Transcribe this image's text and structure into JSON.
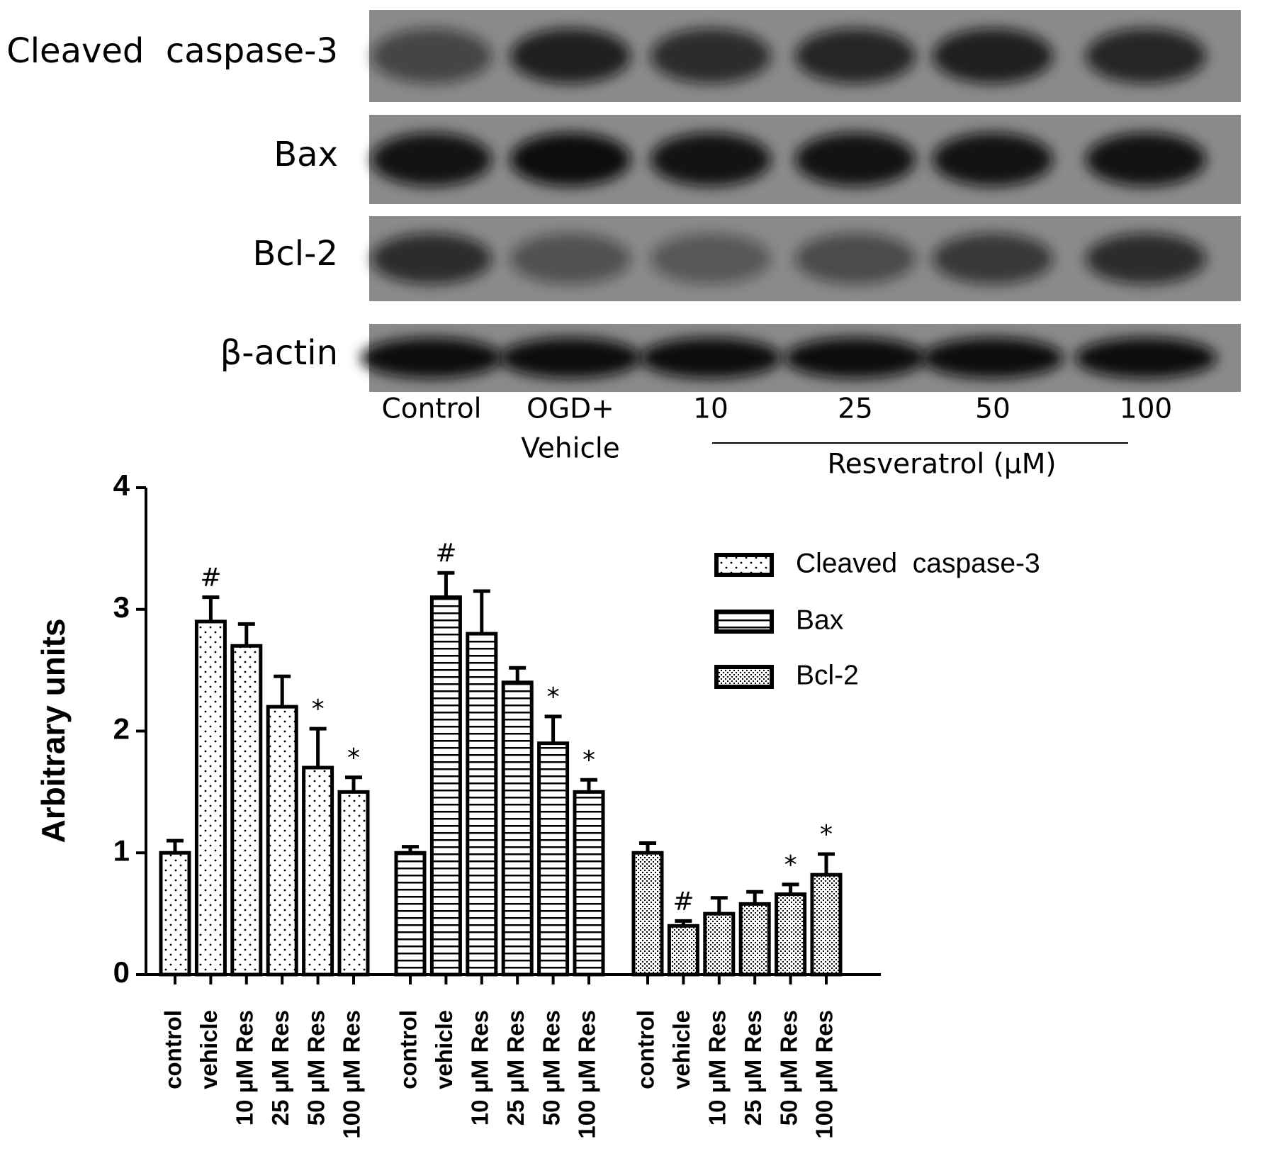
{
  "blot": {
    "rows": [
      "Cleaved  caspase-3",
      "Bax",
      "Bcl-2",
      "β-actin"
    ],
    "lanes": [
      "Control",
      [
        "OGD+",
        "Vehicle"
      ],
      "10",
      "25",
      "50",
      "100"
    ],
    "group_label": "Resveratrol (μM)"
  },
  "chart_data": {
    "type": "bar",
    "y_label": "Arbitrary units",
    "categories": [
      "control",
      "vehicle",
      "10 μM Res",
      "25 μM Res",
      "50 μM Res",
      "100 μM Res"
    ],
    "ylim": [
      0,
      4
    ],
    "yticks": [
      0,
      1,
      2,
      3,
      4
    ],
    "color": "#000000",
    "series": [
      {
        "name": "Cleaved  caspase-3",
        "pattern": "dots",
        "values": [
          1.0,
          2.9,
          2.7,
          2.2,
          1.7,
          1.5
        ],
        "errors": [
          0.1,
          0.2,
          0.18,
          0.25,
          0.32,
          0.12
        ],
        "markers": [
          null,
          "#",
          null,
          null,
          "*",
          "*"
        ]
      },
      {
        "name": "Bax",
        "pattern": "hlines",
        "values": [
          1.0,
          3.1,
          2.8,
          2.4,
          1.9,
          1.5
        ],
        "errors": [
          0.05,
          0.2,
          0.35,
          0.12,
          0.22,
          0.1
        ],
        "markers": [
          null,
          "#",
          null,
          null,
          "*",
          "*"
        ]
      },
      {
        "name": "Bcl-2",
        "pattern": "checker",
        "values": [
          1.0,
          0.4,
          0.5,
          0.58,
          0.66,
          0.82
        ],
        "errors": [
          0.08,
          0.04,
          0.13,
          0.1,
          0.08,
          0.17
        ],
        "markers": [
          null,
          "#",
          null,
          null,
          "*",
          "*"
        ]
      }
    ]
  }
}
